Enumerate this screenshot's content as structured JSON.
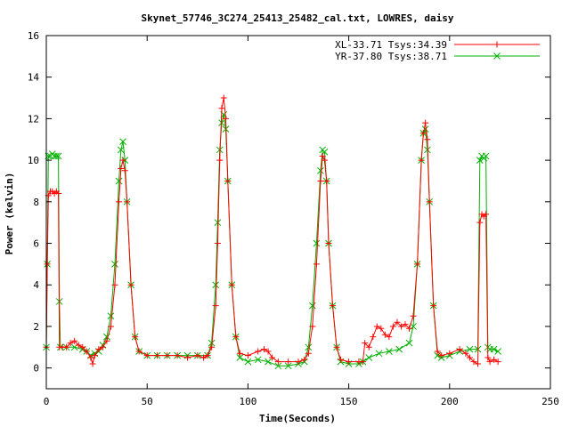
{
  "chart_data": {
    "type": "line",
    "title": "Skynet_57746_3C274_25413_25482_cal.txt, LOWRES, daisy",
    "xlabel": "Time(Seconds)",
    "ylabel": "Power (kelvin)",
    "xlim": [
      0,
      250
    ],
    "ylim": [
      -1,
      16
    ],
    "xticks": [
      0,
      50,
      100,
      150,
      200,
      250
    ],
    "yticks": [
      0,
      2,
      4,
      6,
      8,
      10,
      12,
      14,
      16
    ],
    "grid": false,
    "legend_position": "top-right",
    "series": [
      {
        "name": "XL-33.71 Tsys:34.39",
        "color": "#ff0000",
        "marker": "plus",
        "points": [
          [
            0,
            1.0
          ],
          [
            0.5,
            5.0
          ],
          [
            1,
            8.3
          ],
          [
            2,
            8.5
          ],
          [
            3,
            8.5
          ],
          [
            4,
            8.4
          ],
          [
            5,
            8.5
          ],
          [
            6,
            8.4
          ],
          [
            6.5,
            1.0
          ],
          [
            8,
            1.0
          ],
          [
            10,
            1.0
          ],
          [
            12,
            1.2
          ],
          [
            14,
            1.3
          ],
          [
            16,
            1.1
          ],
          [
            18,
            1.0
          ],
          [
            20,
            0.8
          ],
          [
            22,
            0.5
          ],
          [
            23,
            0.2
          ],
          [
            24,
            0.6
          ],
          [
            26,
            0.9
          ],
          [
            28,
            1.0
          ],
          [
            30,
            1.3
          ],
          [
            32,
            2.0
          ],
          [
            34,
            4.0
          ],
          [
            36,
            8.0
          ],
          [
            37,
            9.6
          ],
          [
            38,
            10.0
          ],
          [
            39,
            9.5
          ],
          [
            40,
            8.0
          ],
          [
            42,
            4.0
          ],
          [
            44,
            1.5
          ],
          [
            46,
            0.8
          ],
          [
            50,
            0.6
          ],
          [
            55,
            0.6
          ],
          [
            60,
            0.6
          ],
          [
            65,
            0.6
          ],
          [
            70,
            0.5
          ],
          [
            75,
            0.6
          ],
          [
            78,
            0.5
          ],
          [
            80,
            0.6
          ],
          [
            82,
            1.0
          ],
          [
            84,
            3.0
          ],
          [
            85,
            6.0
          ],
          [
            86,
            10.0
          ],
          [
            87,
            12.5
          ],
          [
            88,
            13.0
          ],
          [
            89,
            12.0
          ],
          [
            90,
            9.0
          ],
          [
            92,
            4.0
          ],
          [
            94,
            1.5
          ],
          [
            96,
            0.7
          ],
          [
            100,
            0.6
          ],
          [
            105,
            0.8
          ],
          [
            108,
            0.9
          ],
          [
            110,
            0.8
          ],
          [
            112,
            0.5
          ],
          [
            115,
            0.3
          ],
          [
            120,
            0.3
          ],
          [
            125,
            0.3
          ],
          [
            128,
            0.4
          ],
          [
            130,
            0.7
          ],
          [
            132,
            2.0
          ],
          [
            134,
            5.0
          ],
          [
            136,
            9.0
          ],
          [
            137,
            10.2
          ],
          [
            138,
            10.0
          ],
          [
            139,
            9.0
          ],
          [
            140,
            6.0
          ],
          [
            142,
            3.0
          ],
          [
            144,
            1.0
          ],
          [
            146,
            0.4
          ],
          [
            150,
            0.3
          ],
          [
            155,
            0.3
          ],
          [
            157,
            0.3
          ],
          [
            158,
            1.2
          ],
          [
            160,
            1.0
          ],
          [
            162,
            1.5
          ],
          [
            164,
            2.0
          ],
          [
            166,
            1.9
          ],
          [
            168,
            1.6
          ],
          [
            170,
            1.5
          ],
          [
            172,
            2.0
          ],
          [
            174,
            2.2
          ],
          [
            176,
            2.0
          ],
          [
            178,
            2.1
          ],
          [
            180,
            1.9
          ],
          [
            182,
            2.5
          ],
          [
            184,
            5.0
          ],
          [
            186,
            10.0
          ],
          [
            187,
            11.3
          ],
          [
            188,
            11.8
          ],
          [
            189,
            11.0
          ],
          [
            190,
            8.0
          ],
          [
            192,
            3.0
          ],
          [
            194,
            0.8
          ],
          [
            196,
            0.6
          ],
          [
            200,
            0.7
          ],
          [
            205,
            0.9
          ],
          [
            208,
            0.7
          ],
          [
            210,
            0.5
          ],
          [
            212,
            0.3
          ],
          [
            214,
            0.2
          ],
          [
            215,
            7.0
          ],
          [
            216,
            7.4
          ],
          [
            217,
            7.3
          ],
          [
            218,
            7.4
          ],
          [
            219,
            0.5
          ],
          [
            220,
            0.3
          ],
          [
            222,
            0.4
          ],
          [
            224,
            0.3
          ]
        ]
      },
      {
        "name": "YR-37.80 Tsys:38.71",
        "color": "#00b000",
        "marker": "cross",
        "points": [
          [
            0,
            1.0
          ],
          [
            0.5,
            5.0
          ],
          [
            1,
            10.2
          ],
          [
            2,
            10.2
          ],
          [
            3,
            10.3
          ],
          [
            4,
            10.2
          ],
          [
            5,
            10.2
          ],
          [
            6,
            10.2
          ],
          [
            6.5,
            3.2
          ],
          [
            7,
            1.0
          ],
          [
            10,
            1.0
          ],
          [
            14,
            1.0
          ],
          [
            18,
            0.9
          ],
          [
            20,
            0.8
          ],
          [
            22,
            0.6
          ],
          [
            24,
            0.7
          ],
          [
            26,
            0.8
          ],
          [
            28,
            1.1
          ],
          [
            30,
            1.5
          ],
          [
            32,
            2.5
          ],
          [
            34,
            5.0
          ],
          [
            36,
            9.0
          ],
          [
            37,
            10.5
          ],
          [
            38,
            10.9
          ],
          [
            39,
            10.0
          ],
          [
            40,
            8.0
          ],
          [
            42,
            4.0
          ],
          [
            44,
            1.5
          ],
          [
            46,
            0.8
          ],
          [
            50,
            0.6
          ],
          [
            55,
            0.6
          ],
          [
            60,
            0.6
          ],
          [
            65,
            0.6
          ],
          [
            70,
            0.6
          ],
          [
            75,
            0.6
          ],
          [
            80,
            0.6
          ],
          [
            82,
            1.2
          ],
          [
            84,
            4.0
          ],
          [
            85,
            7.0
          ],
          [
            86,
            10.5
          ],
          [
            87,
            11.8
          ],
          [
            88,
            12.2
          ],
          [
            89,
            11.5
          ],
          [
            90,
            9.0
          ],
          [
            92,
            4.0
          ],
          [
            94,
            1.5
          ],
          [
            96,
            0.5
          ],
          [
            100,
            0.3
          ],
          [
            105,
            0.4
          ],
          [
            110,
            0.3
          ],
          [
            115,
            0.1
          ],
          [
            120,
            0.1
          ],
          [
            125,
            0.2
          ],
          [
            128,
            0.3
          ],
          [
            130,
            1.0
          ],
          [
            132,
            3.0
          ],
          [
            134,
            6.0
          ],
          [
            136,
            9.5
          ],
          [
            137,
            10.5
          ],
          [
            138,
            10.4
          ],
          [
            139,
            9.0
          ],
          [
            140,
            6.0
          ],
          [
            142,
            3.0
          ],
          [
            144,
            1.0
          ],
          [
            146,
            0.3
          ],
          [
            150,
            0.2
          ],
          [
            155,
            0.2
          ],
          [
            157,
            0.3
          ],
          [
            160,
            0.5
          ],
          [
            165,
            0.7
          ],
          [
            170,
            0.8
          ],
          [
            175,
            0.9
          ],
          [
            180,
            1.2
          ],
          [
            182,
            2.0
          ],
          [
            184,
            5.0
          ],
          [
            186,
            10.0
          ],
          [
            187,
            11.3
          ],
          [
            188,
            11.5
          ],
          [
            189,
            10.5
          ],
          [
            190,
            8.0
          ],
          [
            192,
            3.0
          ],
          [
            194,
            0.6
          ],
          [
            196,
            0.5
          ],
          [
            200,
            0.6
          ],
          [
            205,
            0.8
          ],
          [
            210,
            0.9
          ],
          [
            214,
            0.9
          ],
          [
            215,
            10.0
          ],
          [
            216,
            10.2
          ],
          [
            217,
            10.1
          ],
          [
            218,
            10.2
          ],
          [
            219,
            1.0
          ],
          [
            220,
            0.9
          ],
          [
            222,
            0.9
          ],
          [
            224,
            0.8
          ]
        ]
      }
    ]
  }
}
